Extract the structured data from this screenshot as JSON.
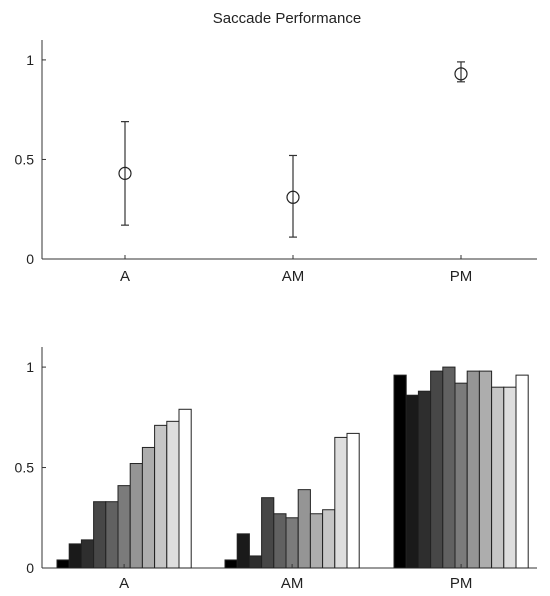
{
  "chart_data": [
    {
      "type": "scatter",
      "title": "Saccade Performance",
      "categories": [
        "A",
        "AM",
        "PM"
      ],
      "ylim": [
        0,
        1.1
      ],
      "yticks": [
        "0",
        "0.5",
        "1"
      ],
      "ytick_values": [
        0,
        0.5,
        1
      ],
      "series": [
        {
          "values": [
            0.43,
            0.31,
            0.93
          ],
          "error_low": [
            0.17,
            0.11,
            0.89
          ],
          "error_high": [
            0.69,
            0.52,
            0.99
          ]
        }
      ],
      "grid": false
    },
    {
      "type": "bar",
      "title": "",
      "categories": [
        "A",
        "AM",
        "PM"
      ],
      "ylim": [
        0,
        1.1
      ],
      "yticks": [
        "0",
        "0.5",
        "1"
      ],
      "ytick_values": [
        0,
        0.5,
        1
      ],
      "groups": [
        {
          "category": "A",
          "values": [
            0.04,
            0.12,
            0.14,
            0.33,
            0.33,
            0.41,
            0.52,
            0.6,
            0.71,
            0.73,
            0.79
          ]
        },
        {
          "category": "AM",
          "values": [
            0.04,
            0.17,
            0.06,
            0.35,
            0.27,
            0.25,
            0.39,
            0.27,
            0.29,
            0.65,
            0.67
          ]
        },
        {
          "category": "PM",
          "values": [
            0.96,
            0.86,
            0.88,
            0.98,
            1.0,
            0.92,
            0.98,
            0.98,
            0.9,
            0.9,
            0.96
          ]
        }
      ],
      "bar_colors": [
        "#000000",
        "#1a1a1a",
        "#2e2e2e",
        "#474747",
        "#616161",
        "#7b7b7b",
        "#959595",
        "#adadad",
        "#c6c6c6",
        "#dedede",
        "#ffffff"
      ],
      "grid": false
    }
  ]
}
